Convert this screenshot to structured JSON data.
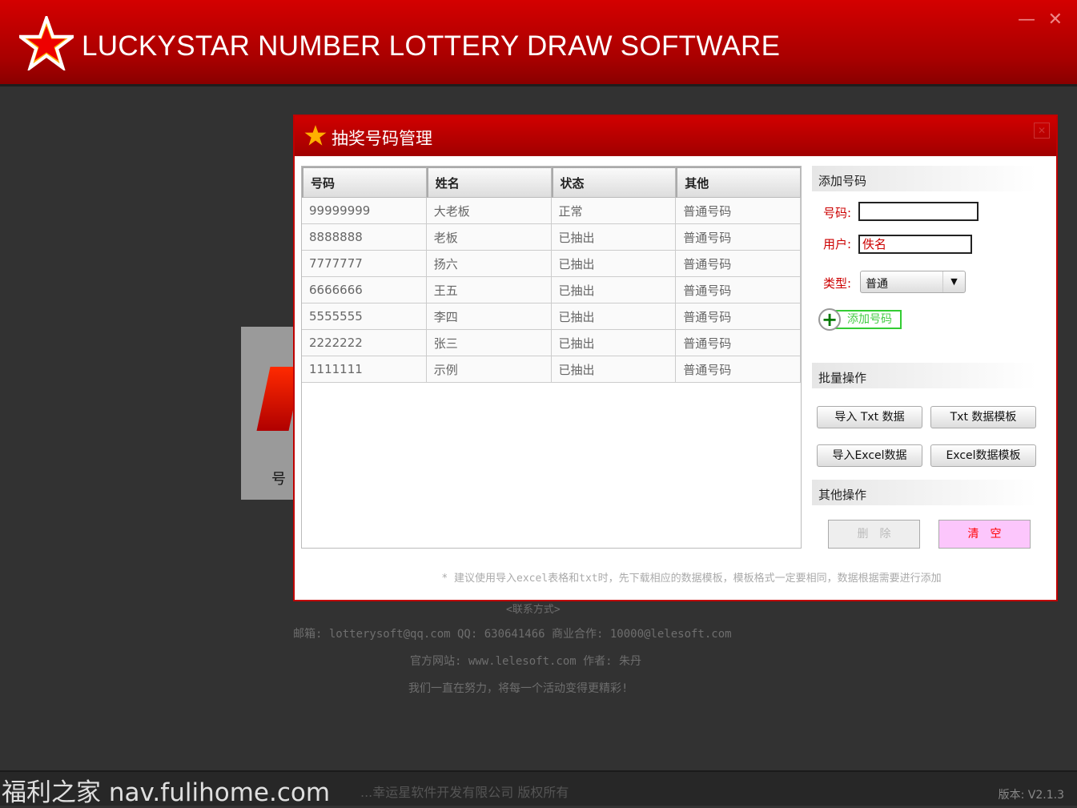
{
  "app": {
    "title": "LUCKYSTAR NUMBER LOTTERY DRAW SOFTWARE",
    "minimize": "—",
    "close": "✕",
    "accent": "#c00000"
  },
  "background": {
    "card_label": "号"
  },
  "dialog": {
    "title": "抽奖号码管理",
    "close": "✕",
    "table": {
      "headers": [
        "号码",
        "姓名",
        "状态",
        "其他"
      ],
      "rows": [
        [
          "99999999",
          "大老板",
          "正常",
          "普通号码"
        ],
        [
          "8888888",
          "老板",
          "已抽出",
          "普通号码"
        ],
        [
          "7777777",
          "扬六",
          "已抽出",
          "普通号码"
        ],
        [
          "6666666",
          "王五",
          "已抽出",
          "普通号码"
        ],
        [
          "5555555",
          "李四",
          "已抽出",
          "普通号码"
        ],
        [
          "2222222",
          "张三",
          "已抽出",
          "普通号码"
        ],
        [
          "1111111",
          "示例",
          "已抽出",
          "普通号码"
        ]
      ]
    },
    "add": {
      "section": "添加号码",
      "number_label": "号码:",
      "number_value": "",
      "user_label": "用户:",
      "user_value": "佚名",
      "type_label": "类型:",
      "type_value": "普通",
      "add_button": "添加号码"
    },
    "batch": {
      "section": "批量操作",
      "import_txt": "导入 Txt 数据",
      "txt_template": "Txt 数据模板",
      "import_excel": "导入Excel数据",
      "excel_template": "Excel数据模板"
    },
    "other": {
      "section": "其他操作",
      "delete": "删　除",
      "clear": "清　空"
    },
    "note": "* 建议使用导入excel表格和txt时，先下载相应的数据模板，模板格式一定要相同，数据根据需要进行添加"
  },
  "contact": {
    "heading": "<联系方式>",
    "line1": "邮箱: lotterysoft@qq.com  QQ: 630641466   商业合作: 10000@lelesoft.com",
    "line2": "官方网站: www.lelesoft.com  作者: 朱丹",
    "line3": "我们一直在努力，将每一个活动变得更精彩!"
  },
  "status": {
    "footer": "...幸运星软件开发有限公司 版权所有",
    "watermark": "福利之家 nav.fulihome.com",
    "version": "版本: V2.1.3"
  }
}
